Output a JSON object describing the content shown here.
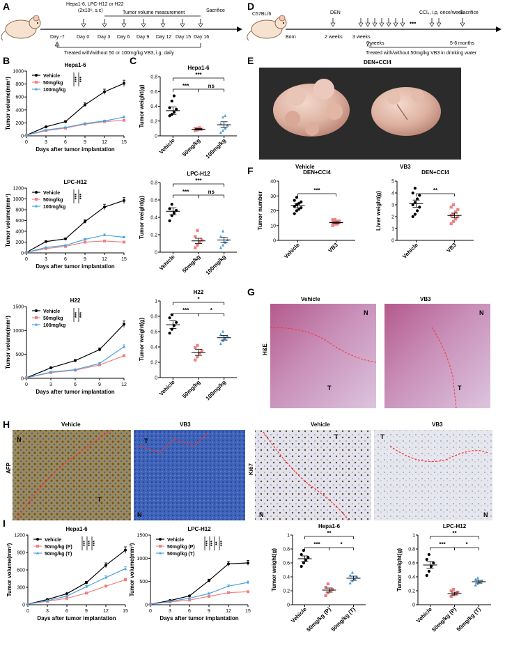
{
  "panel_letters": [
    "A",
    "B",
    "C",
    "D",
    "E",
    "F",
    "G",
    "H",
    "I"
  ],
  "panel_a": {
    "cells": "Hepa1-6, LPC-H12 or H22",
    "inoculation": "(2x10⁶, s.c)",
    "measurement_label": "Tumor volume measurement",
    "sacrifice_label": "Sacrifice",
    "days": [
      "Day -7",
      "Day 0",
      "Day 3",
      "Day 6",
      "Day 9",
      "Day 12",
      "Day 15",
      "Day 16"
    ],
    "treatment": "Treated with/without 50 or 100mg/kg VB3, i.g, daily"
  },
  "panel_d": {
    "strain": "C57BL/6",
    "den_label": "DEN",
    "ccl4_label": "CCl₄, i.p, once/week",
    "dots": "•••",
    "sacrifice_label": "Sacrifice",
    "timepoints": [
      "Born",
      "2 weeks",
      "3 weeks",
      "6 weeks",
      "5-6 months"
    ],
    "treatment": "Treated with/without 50mg/kg VB3 in drinking water"
  },
  "panel_e": {
    "title": "DEN+CCl4",
    "labels": [
      "Vehicle",
      "VB3"
    ]
  },
  "panel_g": {
    "labels": [
      "Vehicle",
      "VB3"
    ],
    "stain": "H&E",
    "regions": [
      "N",
      "T"
    ]
  },
  "panel_h": {
    "labels": [
      "Vehicle",
      "VB3",
      "Vehicle",
      "VB3"
    ],
    "stains": [
      "AFP",
      "Ki67"
    ],
    "regions": [
      "N",
      "T"
    ]
  },
  "colors": {
    "vehicle": "#000000",
    "dose50": "#f08080",
    "dose100": "#4aa3e0"
  },
  "chart_data": [
    {
      "id": "B1",
      "type": "line",
      "title": "Hepa1-6",
      "xlabel": "Days after tumor implantation",
      "ylabel": "Tumor volume(mm³)",
      "x": [
        0,
        3,
        6,
        9,
        12,
        15
      ],
      "xlim": [
        0,
        15
      ],
      "ylim": [
        0,
        1000
      ],
      "yticks": [
        0,
        200,
        400,
        600,
        800,
        1000
      ],
      "series": [
        {
          "name": "Vehicle",
          "values": [
            10,
            140,
            220,
            480,
            680,
            810
          ]
        },
        {
          "name": "50mg/kg",
          "values": [
            10,
            80,
            120,
            180,
            220,
            240
          ]
        },
        {
          "name": "100mg/kg",
          "values": [
            10,
            90,
            130,
            190,
            230,
            290
          ]
        }
      ],
      "significance": [
        "***",
        "***"
      ]
    },
    {
      "id": "B2",
      "type": "line",
      "title": "LPC-H12",
      "xlabel": "Days after tumor implantation",
      "ylabel": "Tumor volume(mm³)",
      "x": [
        0,
        3,
        6,
        9,
        12,
        15
      ],
      "xlim": [
        0,
        15
      ],
      "ylim": [
        0,
        1200
      ],
      "yticks": [
        0,
        200,
        400,
        600,
        800,
        1000,
        1200
      ],
      "series": [
        {
          "name": "Vehicle",
          "values": [
            10,
            210,
            260,
            580,
            850,
            970
          ]
        },
        {
          "name": "50mg/kg",
          "values": [
            10,
            80,
            120,
            200,
            220,
            200
          ]
        },
        {
          "name": "100mg/kg",
          "values": [
            10,
            100,
            140,
            250,
            330,
            290
          ]
        }
      ],
      "significance": [
        "***",
        "***"
      ]
    },
    {
      "id": "B3",
      "type": "line",
      "title": "H22",
      "xlabel": "Days after tumor implantation",
      "ylabel": "Tumor volume(mm³)",
      "x": [
        0,
        3,
        6,
        9,
        12
      ],
      "xlim": [
        0,
        12
      ],
      "ylim": [
        0,
        1500
      ],
      "yticks": [
        0,
        500,
        1000,
        1500
      ],
      "series": [
        {
          "name": "Vehicle",
          "values": [
            10,
            220,
            370,
            600,
            1130
          ]
        },
        {
          "name": "50mg/kg",
          "values": [
            10,
            120,
            170,
            280,
            470
          ]
        },
        {
          "name": "100mg/kg",
          "values": [
            10,
            130,
            180,
            310,
            660
          ]
        }
      ],
      "significance": [
        "***",
        "***"
      ]
    },
    {
      "id": "C1",
      "type": "scatter",
      "title": "Hepa1-6",
      "ylabel": "Tumor weight(g)",
      "categories": [
        "Vehicle",
        "50mg/kg",
        "100mg/kg"
      ],
      "ylim": [
        0,
        0.8
      ],
      "yticks": [
        0,
        0.2,
        0.4,
        0.6,
        0.8
      ],
      "groups": [
        {
          "mean": 0.34,
          "sem": 0.05,
          "values": [
            0.27,
            0.29,
            0.32,
            0.36,
            0.38,
            0.47,
            0.54
          ]
        },
        {
          "mean": 0.09,
          "sem": 0.01,
          "values": [
            0.07,
            0.08,
            0.09,
            0.09,
            0.1,
            0.1,
            0.11
          ]
        },
        {
          "mean": 0.15,
          "sem": 0.04,
          "values": [
            0.04,
            0.07,
            0.1,
            0.14,
            0.16,
            0.25,
            0.27
          ]
        }
      ],
      "significance": [
        {
          "pair": [
            0,
            1
          ],
          "label": "***"
        },
        {
          "pair": [
            1,
            2
          ],
          "label": "ns"
        },
        {
          "pair": [
            0,
            2
          ],
          "label": "***"
        }
      ]
    },
    {
      "id": "C2",
      "type": "scatter",
      "title": "LPC-H12",
      "ylabel": "Tumor weight(g)",
      "categories": [
        "Vehicle",
        "50mg/kg",
        "100mg/kg"
      ],
      "ylim": [
        0,
        0.8
      ],
      "yticks": [
        0,
        0.2,
        0.4,
        0.6,
        0.8
      ],
      "groups": [
        {
          "mean": 0.47,
          "sem": 0.04,
          "values": [
            0.36,
            0.42,
            0.45,
            0.48,
            0.5,
            0.55
          ]
        },
        {
          "mean": 0.13,
          "sem": 0.03,
          "values": [
            0.05,
            0.08,
            0.12,
            0.14,
            0.18,
            0.25
          ]
        },
        {
          "mean": 0.14,
          "sem": 0.03,
          "values": [
            0.05,
            0.08,
            0.11,
            0.14,
            0.18,
            0.24
          ]
        }
      ],
      "significance": [
        {
          "pair": [
            0,
            1
          ],
          "label": "***"
        },
        {
          "pair": [
            1,
            2
          ],
          "label": "ns"
        },
        {
          "pair": [
            0,
            2
          ],
          "label": "***"
        }
      ]
    },
    {
      "id": "C3",
      "type": "scatter",
      "title": "H22",
      "ylabel": "Tumor weight(g)",
      "categories": [
        "Vehicle",
        "50mg/kg",
        "100mg/kg"
      ],
      "ylim": [
        0,
        1.0
      ],
      "yticks": [
        0,
        0.2,
        0.4,
        0.6,
        0.8,
        1.0
      ],
      "groups": [
        {
          "mean": 0.69,
          "sem": 0.05,
          "values": [
            0.58,
            0.63,
            0.68,
            0.72,
            0.78,
            0.82
          ]
        },
        {
          "mean": 0.33,
          "sem": 0.04,
          "values": [
            0.23,
            0.27,
            0.32,
            0.35,
            0.39,
            0.42
          ]
        },
        {
          "mean": 0.52,
          "sem": 0.03,
          "values": [
            0.44,
            0.48,
            0.51,
            0.54,
            0.56,
            0.6
          ]
        }
      ],
      "significance": [
        {
          "pair": [
            0,
            1
          ],
          "label": "***"
        },
        {
          "pair": [
            1,
            2
          ],
          "label": "*"
        },
        {
          "pair": [
            0,
            2
          ],
          "label": "*"
        }
      ]
    },
    {
      "id": "F1",
      "type": "scatter",
      "title": "DEN+CCl4",
      "ylabel": "Tumor number",
      "categories": [
        "Vehicle",
        "VB3"
      ],
      "ylim": [
        0,
        40
      ],
      "yticks": [
        0,
        10,
        20,
        30,
        40
      ],
      "groups": [
        {
          "mean": 23.5,
          "sem": 1.5,
          "values": [
            18,
            20,
            21,
            22,
            23,
            24,
            25,
            26,
            27,
            29
          ]
        },
        {
          "mean": 12,
          "sem": 0.5,
          "values": [
            10,
            11,
            11,
            12,
            12,
            12,
            13,
            13,
            14,
            14
          ]
        }
      ],
      "significance": [
        {
          "pair": [
            0,
            1
          ],
          "label": "***"
        }
      ]
    },
    {
      "id": "F2",
      "type": "scatter",
      "title": "DEN+CCl4",
      "ylabel": "Liver weight(g)",
      "categories": [
        "Vehicle",
        "VB3"
      ],
      "ylim": [
        0,
        5
      ],
      "yticks": [
        0,
        1,
        2,
        3,
        4,
        5
      ],
      "groups": [
        {
          "mean": 3.1,
          "sem": 0.3,
          "values": [
            2.0,
            2.2,
            2.5,
            2.8,
            3.0,
            3.2,
            3.5,
            3.8,
            4.0,
            4.4
          ]
        },
        {
          "mean": 2.1,
          "sem": 0.2,
          "values": [
            1.4,
            1.6,
            1.8,
            2.0,
            2.1,
            2.2,
            2.4,
            2.6,
            2.8,
            3.0
          ]
        }
      ],
      "significance": [
        {
          "pair": [
            0,
            1
          ],
          "label": "**"
        }
      ]
    },
    {
      "id": "I1",
      "type": "line",
      "title": "Hepa1-6",
      "xlabel": "Days after tumor implantation",
      "ylabel": "Tumor volume(mm³)",
      "x": [
        0,
        3,
        6,
        9,
        12,
        15
      ],
      "xlim": [
        0,
        15
      ],
      "ylim": [
        0,
        1200
      ],
      "yticks": [
        0,
        300,
        600,
        900,
        1200
      ],
      "series": [
        {
          "name": "Vehicle",
          "values": [
            10,
            90,
            190,
            380,
            680,
            940
          ]
        },
        {
          "name": "50mg/kg (P)",
          "values": [
            10,
            60,
            110,
            200,
            320,
            430
          ]
        },
        {
          "name": "50mg/kg (T)",
          "values": [
            10,
            70,
            150,
            310,
            470,
            620
          ]
        }
      ],
      "significance": [
        "***",
        "***",
        "***"
      ]
    },
    {
      "id": "I2",
      "type": "line",
      "title": "LPC-H12",
      "xlabel": "Days after tumor implantation",
      "ylabel": "Tumor volume(mm³)",
      "x": [
        0,
        3,
        6,
        9,
        12,
        15
      ],
      "xlim": [
        0,
        15
      ],
      "ylim": [
        0,
        1500
      ],
      "yticks": [
        0,
        500,
        1000,
        1500
      ],
      "series": [
        {
          "name": "Vehicle",
          "values": [
            10,
            90,
            190,
            520,
            880,
            900
          ]
        },
        {
          "name": "50mg/kg (P)",
          "values": [
            10,
            60,
            100,
            180,
            260,
            280
          ]
        },
        {
          "name": "50mg/kg (T)",
          "values": [
            10,
            70,
            140,
            240,
            400,
            480
          ]
        }
      ],
      "significance": [
        "***",
        "***",
        "**",
        "***"
      ]
    },
    {
      "id": "I3",
      "type": "scatter",
      "title": "Hepa1-6",
      "ylabel": "Tumor weight(g)",
      "categories": [
        "Vehicle",
        "50mg/kg (P)",
        "50mg/kg (T)"
      ],
      "ylim": [
        0,
        1.0
      ],
      "yticks": [
        0,
        0.2,
        0.4,
        0.6,
        0.8,
        1.0
      ],
      "groups": [
        {
          "mean": 0.66,
          "sem": 0.04,
          "values": [
            0.55,
            0.6,
            0.64,
            0.68,
            0.72,
            0.78
          ]
        },
        {
          "mean": 0.21,
          "sem": 0.03,
          "values": [
            0.13,
            0.17,
            0.2,
            0.22,
            0.25,
            0.3
          ]
        },
        {
          "mean": 0.38,
          "sem": 0.03,
          "values": [
            0.31,
            0.34,
            0.37,
            0.4,
            0.42,
            0.46
          ]
        }
      ],
      "significance": [
        {
          "pair": [
            0,
            1
          ],
          "label": "***"
        },
        {
          "pair": [
            1,
            2
          ],
          "label": "*"
        },
        {
          "pair": [
            0,
            2
          ],
          "label": "**"
        }
      ]
    },
    {
      "id": "I4",
      "type": "scatter",
      "title": "LPC-H12",
      "ylabel": "Tumor weight(g)",
      "categories": [
        "Vehicle",
        "50mg/kg (P)",
        "50mg/kg (T)"
      ],
      "ylim": [
        0,
        1.0
      ],
      "yticks": [
        0,
        0.2,
        0.4,
        0.6,
        0.8,
        1.0
      ],
      "groups": [
        {
          "mean": 0.57,
          "sem": 0.05,
          "values": [
            0.42,
            0.48,
            0.55,
            0.6,
            0.65,
            0.72
          ]
        },
        {
          "mean": 0.16,
          "sem": 0.02,
          "values": [
            0.12,
            0.14,
            0.16,
            0.18,
            0.2,
            0.22
          ]
        },
        {
          "mean": 0.33,
          "sem": 0.02,
          "values": [
            0.28,
            0.3,
            0.32,
            0.34,
            0.36,
            0.38
          ]
        }
      ],
      "significance": [
        {
          "pair": [
            0,
            1
          ],
          "label": "***"
        },
        {
          "pair": [
            1,
            2
          ],
          "label": "*"
        },
        {
          "pair": [
            0,
            2
          ],
          "label": "**"
        }
      ]
    }
  ]
}
